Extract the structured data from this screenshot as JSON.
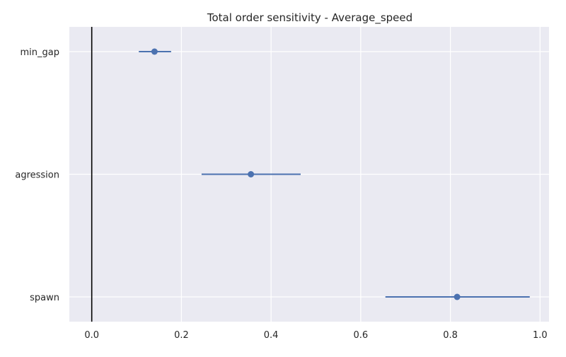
{
  "chart_data": {
    "type": "scatter",
    "title": "Total order sensitivity  -  Average_speed",
    "xlabel": "",
    "ylabel": "",
    "xlim": [
      -0.05,
      1.02
    ],
    "xticks": [
      0.0,
      0.2,
      0.4,
      0.6,
      0.8,
      1.0
    ],
    "xtick_labels": [
      "0.0",
      "0.2",
      "0.4",
      "0.6",
      "0.8",
      "1.0"
    ],
    "categories": [
      "min_gap",
      "agression",
      "spawn"
    ],
    "values": [
      0.14,
      0.355,
      0.815
    ],
    "intervals": [
      [
        0.105,
        0.177
      ],
      [
        0.245,
        0.466
      ],
      [
        0.655,
        0.977
      ]
    ],
    "reference_line_x": 0.0,
    "grid": true,
    "colors": {
      "background": "#eaeaf2",
      "grid": "#ffffff",
      "series": "#4c72b0",
      "reference_line": "#000000",
      "text": "#262626"
    }
  }
}
